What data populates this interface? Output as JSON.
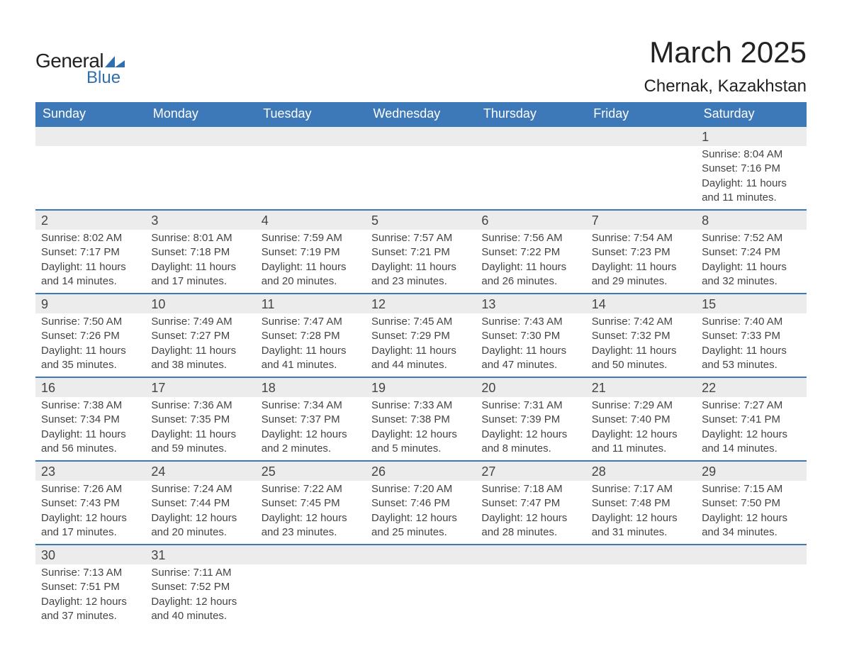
{
  "logo": {
    "general": "General",
    "blue": "Blue",
    "shape_color": "#2f6fb0"
  },
  "title": "March 2025",
  "location": "Chernak, Kazakhstan",
  "colors": {
    "header_bg": "#3d78b8",
    "header_text": "#ffffff",
    "daynum_bg": "#ececec",
    "row_border": "#3d78b8",
    "text": "#444444",
    "bg": "#ffffff"
  },
  "typography": {
    "title_fontsize": 42,
    "location_fontsize": 24,
    "header_fontsize": 18,
    "daynum_fontsize": 18,
    "detail_fontsize": 15
  },
  "day_headers": [
    "Sunday",
    "Monday",
    "Tuesday",
    "Wednesday",
    "Thursday",
    "Friday",
    "Saturday"
  ],
  "weeks": [
    [
      null,
      null,
      null,
      null,
      null,
      null,
      {
        "n": "1",
        "sunrise": "8:04 AM",
        "sunset": "7:16 PM",
        "day_h": "11",
        "day_m": "11"
      }
    ],
    [
      {
        "n": "2",
        "sunrise": "8:02 AM",
        "sunset": "7:17 PM",
        "day_h": "11",
        "day_m": "14"
      },
      {
        "n": "3",
        "sunrise": "8:01 AM",
        "sunset": "7:18 PM",
        "day_h": "11",
        "day_m": "17"
      },
      {
        "n": "4",
        "sunrise": "7:59 AM",
        "sunset": "7:19 PM",
        "day_h": "11",
        "day_m": "20"
      },
      {
        "n": "5",
        "sunrise": "7:57 AM",
        "sunset": "7:21 PM",
        "day_h": "11",
        "day_m": "23"
      },
      {
        "n": "6",
        "sunrise": "7:56 AM",
        "sunset": "7:22 PM",
        "day_h": "11",
        "day_m": "26"
      },
      {
        "n": "7",
        "sunrise": "7:54 AM",
        "sunset": "7:23 PM",
        "day_h": "11",
        "day_m": "29"
      },
      {
        "n": "8",
        "sunrise": "7:52 AM",
        "sunset": "7:24 PM",
        "day_h": "11",
        "day_m": "32"
      }
    ],
    [
      {
        "n": "9",
        "sunrise": "7:50 AM",
        "sunset": "7:26 PM",
        "day_h": "11",
        "day_m": "35"
      },
      {
        "n": "10",
        "sunrise": "7:49 AM",
        "sunset": "7:27 PM",
        "day_h": "11",
        "day_m": "38"
      },
      {
        "n": "11",
        "sunrise": "7:47 AM",
        "sunset": "7:28 PM",
        "day_h": "11",
        "day_m": "41"
      },
      {
        "n": "12",
        "sunrise": "7:45 AM",
        "sunset": "7:29 PM",
        "day_h": "11",
        "day_m": "44"
      },
      {
        "n": "13",
        "sunrise": "7:43 AM",
        "sunset": "7:30 PM",
        "day_h": "11",
        "day_m": "47"
      },
      {
        "n": "14",
        "sunrise": "7:42 AM",
        "sunset": "7:32 PM",
        "day_h": "11",
        "day_m": "50"
      },
      {
        "n": "15",
        "sunrise": "7:40 AM",
        "sunset": "7:33 PM",
        "day_h": "11",
        "day_m": "53"
      }
    ],
    [
      {
        "n": "16",
        "sunrise": "7:38 AM",
        "sunset": "7:34 PM",
        "day_h": "11",
        "day_m": "56"
      },
      {
        "n": "17",
        "sunrise": "7:36 AM",
        "sunset": "7:35 PM",
        "day_h": "11",
        "day_m": "59"
      },
      {
        "n": "18",
        "sunrise": "7:34 AM",
        "sunset": "7:37 PM",
        "day_h": "12",
        "day_m": "2"
      },
      {
        "n": "19",
        "sunrise": "7:33 AM",
        "sunset": "7:38 PM",
        "day_h": "12",
        "day_m": "5"
      },
      {
        "n": "20",
        "sunrise": "7:31 AM",
        "sunset": "7:39 PM",
        "day_h": "12",
        "day_m": "8"
      },
      {
        "n": "21",
        "sunrise": "7:29 AM",
        "sunset": "7:40 PM",
        "day_h": "12",
        "day_m": "11"
      },
      {
        "n": "22",
        "sunrise": "7:27 AM",
        "sunset": "7:41 PM",
        "day_h": "12",
        "day_m": "14"
      }
    ],
    [
      {
        "n": "23",
        "sunrise": "7:26 AM",
        "sunset": "7:43 PM",
        "day_h": "12",
        "day_m": "17"
      },
      {
        "n": "24",
        "sunrise": "7:24 AM",
        "sunset": "7:44 PM",
        "day_h": "12",
        "day_m": "20"
      },
      {
        "n": "25",
        "sunrise": "7:22 AM",
        "sunset": "7:45 PM",
        "day_h": "12",
        "day_m": "23"
      },
      {
        "n": "26",
        "sunrise": "7:20 AM",
        "sunset": "7:46 PM",
        "day_h": "12",
        "day_m": "25"
      },
      {
        "n": "27",
        "sunrise": "7:18 AM",
        "sunset": "7:47 PM",
        "day_h": "12",
        "day_m": "28"
      },
      {
        "n": "28",
        "sunrise": "7:17 AM",
        "sunset": "7:48 PM",
        "day_h": "12",
        "day_m": "31"
      },
      {
        "n": "29",
        "sunrise": "7:15 AM",
        "sunset": "7:50 PM",
        "day_h": "12",
        "day_m": "34"
      }
    ],
    [
      {
        "n": "30",
        "sunrise": "7:13 AM",
        "sunset": "7:51 PM",
        "day_h": "12",
        "day_m": "37"
      },
      {
        "n": "31",
        "sunrise": "7:11 AM",
        "sunset": "7:52 PM",
        "day_h": "12",
        "day_m": "40"
      },
      null,
      null,
      null,
      null,
      null
    ]
  ],
  "labels": {
    "sunrise": "Sunrise:",
    "sunset": "Sunset:",
    "daylight_prefix": "Daylight:",
    "hours_word": "hours",
    "and_word": "and",
    "minutes_word": "minutes."
  }
}
